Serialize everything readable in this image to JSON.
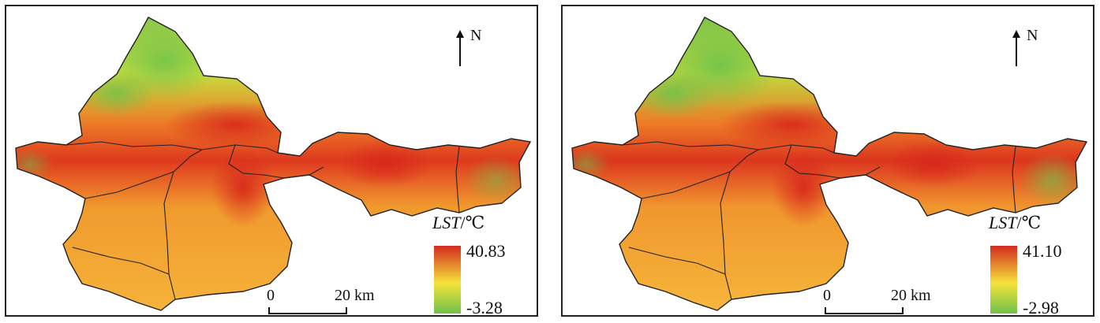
{
  "panels": [
    {
      "north_label": "N",
      "legend": {
        "title_var": "LST",
        "title_unit": "/℃",
        "max": "40.83",
        "min": "-3.28"
      },
      "scale": {
        "zero": "0",
        "end": "20 km"
      },
      "colors": {
        "high": "#d42a1e",
        "mid": "#f5e23a",
        "low": "#6fc24a"
      }
    },
    {
      "north_label": "N",
      "legend": {
        "title_var": "LST",
        "title_unit": "/℃",
        "max": "41.10",
        "min": "-2.98"
      },
      "scale": {
        "zero": "0",
        "end": "20 km"
      },
      "colors": {
        "high": "#d42a1e",
        "mid": "#f5e23a",
        "low": "#6fc24a"
      }
    }
  ]
}
